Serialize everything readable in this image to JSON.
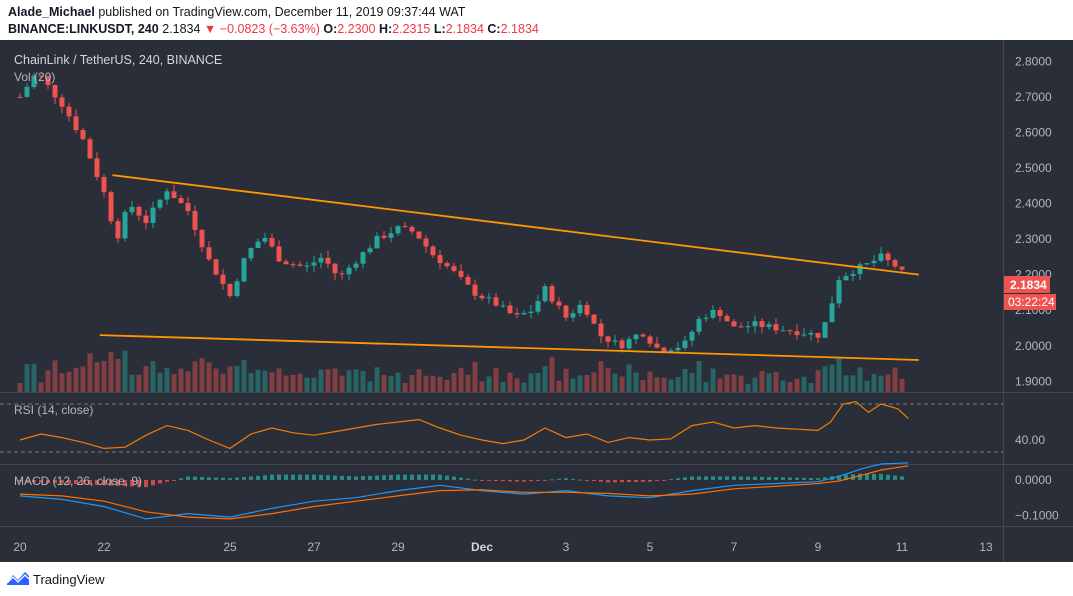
{
  "header": {
    "publisher": "Alade_Michael",
    "published_text": "published on TradingView.com, December 11, 2019 09:37:44 WAT",
    "symbol": "BINANCE:LINKUSDT, 240",
    "last": "2.1834",
    "change": "−0.0823 (−3.63%)",
    "o_label": "O:",
    "o": "2.2300",
    "h_label": "H:",
    "h": "2.2315",
    "l_label": "L:",
    "l": "2.1834",
    "c_label": "C:",
    "c": "2.1834"
  },
  "legend": {
    "main": "ChainLink / TetherUS, 240, BINANCE",
    "vol": "Vol (20)",
    "rsi": "RSI (14, close)",
    "macd": "MACD (12, 26, close, 9)"
  },
  "price_badge": "2.1834",
  "countdown_badge": "03:22:24",
  "footer": {
    "brand": "TradingView"
  },
  "colors": {
    "background": "#2a2e39",
    "up": "#26a69a",
    "down": "#ef5350",
    "trendline": "#ff9800",
    "rsi": "#f57c00",
    "macd": "#2196f3",
    "signal": "#ff6d00"
  },
  "chart_data": [
    {
      "type": "candlestick",
      "title": "ChainLink / TetherUS, 240, BINANCE",
      "y_ticks": [
        "2.8000",
        "2.7000",
        "2.6000",
        "2.5000",
        "2.4000",
        "2.3000",
        "2.2000",
        "2.1000",
        "2.0000",
        "1.9000"
      ],
      "ylim": [
        1.87,
        2.86
      ],
      "x_ticks": [
        "20",
        "22",
        "25",
        "27",
        "29",
        "Dec",
        "3",
        "5",
        "7",
        "9",
        "11",
        "13"
      ],
      "close_path": [
        {
          "d": 0,
          "v": 2.7
        },
        {
          "d": 0.4,
          "v": 2.77
        },
        {
          "d": 1,
          "v": 2.68
        },
        {
          "d": 1.5,
          "v": 2.58
        },
        {
          "d": 2,
          "v": 2.43
        },
        {
          "d": 2.3,
          "v": 2.3
        },
        {
          "d": 2.6,
          "v": 2.4
        },
        {
          "d": 3,
          "v": 2.35
        },
        {
          "d": 3.5,
          "v": 2.44
        },
        {
          "d": 4,
          "v": 2.38
        },
        {
          "d": 4.5,
          "v": 2.24
        },
        {
          "d": 5,
          "v": 2.14
        },
        {
          "d": 5.4,
          "v": 2.26
        },
        {
          "d": 5.8,
          "v": 2.31
        },
        {
          "d": 6.2,
          "v": 2.24
        },
        {
          "d": 6.8,
          "v": 2.22
        },
        {
          "d": 7.2,
          "v": 2.25
        },
        {
          "d": 7.6,
          "v": 2.19
        },
        {
          "d": 8,
          "v": 2.24
        },
        {
          "d": 8.5,
          "v": 2.3
        },
        {
          "d": 9,
          "v": 2.33
        },
        {
          "d": 9.4,
          "v": 2.32
        },
        {
          "d": 9.8,
          "v": 2.26
        },
        {
          "d": 10.3,
          "v": 2.21
        },
        {
          "d": 10.8,
          "v": 2.15
        },
        {
          "d": 11.3,
          "v": 2.12
        },
        {
          "d": 11.8,
          "v": 2.08
        },
        {
          "d": 12.2,
          "v": 2.1
        },
        {
          "d": 12.5,
          "v": 2.16
        },
        {
          "d": 13,
          "v": 2.08
        },
        {
          "d": 13.4,
          "v": 2.12
        },
        {
          "d": 13.8,
          "v": 2.03
        },
        {
          "d": 14.3,
          "v": 2.0
        },
        {
          "d": 14.8,
          "v": 2.04
        },
        {
          "d": 15.2,
          "v": 1.99
        },
        {
          "d": 15.8,
          "v": 2.0
        },
        {
          "d": 16.2,
          "v": 2.08
        },
        {
          "d": 16.6,
          "v": 2.1
        },
        {
          "d": 17,
          "v": 2.05
        },
        {
          "d": 17.5,
          "v": 2.06
        },
        {
          "d": 18,
          "v": 2.05
        },
        {
          "d": 18.5,
          "v": 2.04
        },
        {
          "d": 19,
          "v": 2.03
        },
        {
          "d": 19.2,
          "v": 2.07
        },
        {
          "d": 19.5,
          "v": 2.19
        },
        {
          "d": 19.8,
          "v": 2.21
        },
        {
          "d": 20.2,
          "v": 2.23
        },
        {
          "d": 20.5,
          "v": 2.25
        },
        {
          "d": 20.9,
          "v": 2.22
        },
        {
          "d": 21.15,
          "v": 2.1834
        }
      ],
      "trendlines": [
        {
          "name": "resistance",
          "from": {
            "d": 2.2,
            "v": 2.48
          },
          "to": {
            "d": 21.4,
            "v": 2.2
          }
        },
        {
          "name": "support",
          "from": {
            "d": 1.9,
            "v": 2.03
          },
          "to": {
            "d": 21.4,
            "v": 1.96
          }
        }
      ]
    },
    {
      "type": "line",
      "title": "RSI (14, close)",
      "y_ticks": [
        "40.00"
      ],
      "ylim": [
        20,
        80
      ],
      "levels": [
        70,
        30
      ],
      "series": [
        {
          "values": [
            {
              "d": 0,
              "v": 40
            },
            {
              "d": 0.5,
              "v": 45
            },
            {
              "d": 1,
              "v": 42
            },
            {
              "d": 1.5,
              "v": 38
            },
            {
              "d": 2,
              "v": 33
            },
            {
              "d": 2.5,
              "v": 34
            },
            {
              "d": 3,
              "v": 44
            },
            {
              "d": 3.5,
              "v": 52
            },
            {
              "d": 4,
              "v": 48
            },
            {
              "d": 4.5,
              "v": 40
            },
            {
              "d": 5,
              "v": 33
            },
            {
              "d": 5.5,
              "v": 45
            },
            {
              "d": 6,
              "v": 50
            },
            {
              "d": 6.5,
              "v": 46
            },
            {
              "d": 7,
              "v": 44
            },
            {
              "d": 7.5,
              "v": 47
            },
            {
              "d": 8,
              "v": 50
            },
            {
              "d": 8.5,
              "v": 53
            },
            {
              "d": 9,
              "v": 55
            },
            {
              "d": 9.5,
              "v": 57
            },
            {
              "d": 10,
              "v": 50
            },
            {
              "d": 10.5,
              "v": 44
            },
            {
              "d": 11,
              "v": 40
            },
            {
              "d": 11.5,
              "v": 37
            },
            {
              "d": 12,
              "v": 40
            },
            {
              "d": 12.5,
              "v": 50
            },
            {
              "d": 13,
              "v": 42
            },
            {
              "d": 13.5,
              "v": 45
            },
            {
              "d": 14,
              "v": 38
            },
            {
              "d": 14.5,
              "v": 42
            },
            {
              "d": 15,
              "v": 40
            },
            {
              "d": 15.5,
              "v": 41
            },
            {
              "d": 16,
              "v": 52
            },
            {
              "d": 16.5,
              "v": 55
            },
            {
              "d": 17,
              "v": 50
            },
            {
              "d": 17.5,
              "v": 52
            },
            {
              "d": 18,
              "v": 50
            },
            {
              "d": 18.5,
              "v": 49
            },
            {
              "d": 19,
              "v": 48
            },
            {
              "d": 19.3,
              "v": 55
            },
            {
              "d": 19.6,
              "v": 70
            },
            {
              "d": 19.9,
              "v": 72
            },
            {
              "d": 20.2,
              "v": 63
            },
            {
              "d": 20.5,
              "v": 70
            },
            {
              "d": 20.9,
              "v": 66
            },
            {
              "d": 21.15,
              "v": 58
            }
          ]
        }
      ]
    },
    {
      "type": "line",
      "title": "MACD (12, 26, close, 9)",
      "y_ticks": [
        "0.0000",
        "−0.1000"
      ],
      "ylim": [
        -0.13,
        0.045
      ],
      "series": [
        {
          "values": [
            {
              "d": 0,
              "v": -0.045
            },
            {
              "d": 1,
              "v": -0.055
            },
            {
              "d": 2,
              "v": -0.075
            },
            {
              "d": 3,
              "v": -0.11
            },
            {
              "d": 4,
              "v": -0.095
            },
            {
              "d": 5,
              "v": -0.105
            },
            {
              "d": 6,
              "v": -0.08
            },
            {
              "d": 7,
              "v": -0.06
            },
            {
              "d": 8,
              "v": -0.05
            },
            {
              "d": 9,
              "v": -0.03
            },
            {
              "d": 10,
              "v": -0.015
            },
            {
              "d": 11,
              "v": -0.03
            },
            {
              "d": 12,
              "v": -0.04
            },
            {
              "d": 13,
              "v": -0.03
            },
            {
              "d": 14,
              "v": -0.045
            },
            {
              "d": 15,
              "v": -0.05
            },
            {
              "d": 16,
              "v": -0.03
            },
            {
              "d": 17,
              "v": -0.015
            },
            {
              "d": 18,
              "v": -0.01
            },
            {
              "d": 19,
              "v": -0.005
            },
            {
              "d": 19.5,
              "v": 0.01
            },
            {
              "d": 20,
              "v": 0.03
            },
            {
              "d": 20.5,
              "v": 0.045
            },
            {
              "d": 21.15,
              "v": 0.048
            }
          ]
        },
        {
          "values": [
            {
              "d": 0,
              "v": -0.04
            },
            {
              "d": 1,
              "v": -0.045
            },
            {
              "d": 2,
              "v": -0.06
            },
            {
              "d": 3,
              "v": -0.09
            },
            {
              "d": 4,
              "v": -0.105
            },
            {
              "d": 5,
              "v": -0.11
            },
            {
              "d": 6,
              "v": -0.095
            },
            {
              "d": 7,
              "v": -0.075
            },
            {
              "d": 8,
              "v": -0.06
            },
            {
              "d": 9,
              "v": -0.045
            },
            {
              "d": 10,
              "v": -0.03
            },
            {
              "d": 11,
              "v": -0.028
            },
            {
              "d": 12,
              "v": -0.035
            },
            {
              "d": 13,
              "v": -0.035
            },
            {
              "d": 14,
              "v": -0.038
            },
            {
              "d": 15,
              "v": -0.045
            },
            {
              "d": 16,
              "v": -0.04
            },
            {
              "d": 17,
              "v": -0.025
            },
            {
              "d": 18,
              "v": -0.018
            },
            {
              "d": 19,
              "v": -0.01
            },
            {
              "d": 19.5,
              "v": -0.003
            },
            {
              "d": 20,
              "v": 0.012
            },
            {
              "d": 20.5,
              "v": 0.028
            },
            {
              "d": 21.15,
              "v": 0.04
            }
          ]
        }
      ]
    }
  ]
}
